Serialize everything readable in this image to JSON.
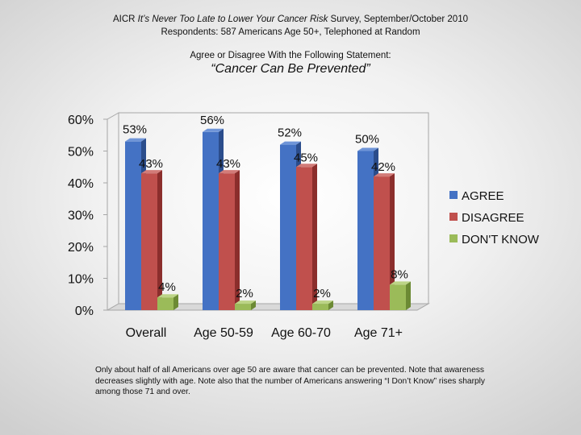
{
  "header": {
    "prefix": "AICR ",
    "survey_name": "It’s Never Too Late to Lower Your Cancer Risk",
    "suffix": " Survey, September/October 2010",
    "respondents": "Respondents: 587 Americans Age 50+, Telephoned at Random"
  },
  "statement_intro": "Agree or Disagree With the Following Statement:",
  "colors": {
    "agree": "#4472C4",
    "disagree": "#C0504D",
    "dont_know": "#9BBB59"
  },
  "chart_data": {
    "type": "bar",
    "title": "“Cancer Can Be Prevented”",
    "categories": [
      "Overall",
      "Age 50-59",
      "Age 60-70",
      "Age 71+"
    ],
    "series": [
      {
        "name": "AGREE",
        "values": [
          53,
          56,
          52,
          50
        ],
        "labels": [
          "53%",
          "56%",
          "52%",
          "50%"
        ]
      },
      {
        "name": "DISAGREE",
        "values": [
          43,
          43,
          45,
          42
        ],
        "labels": [
          "43%",
          "43%",
          "45%",
          "42%"
        ]
      },
      {
        "name": "DON'T KNOW",
        "values": [
          4,
          2,
          2,
          8
        ],
        "labels": [
          "4%",
          "2%",
          "2%",
          "8%"
        ]
      }
    ],
    "yticks": [
      "0%",
      "10%",
      "20%",
      "30%",
      "40%",
      "50%",
      "60%"
    ],
    "ylim": [
      0,
      60
    ],
    "grid": false,
    "legend_position": "right"
  },
  "footnote": "Only about half of all Americans over age 50 are aware that cancer can be prevented.  Note that awareness decreases slightly with age.  Note also that the number of Americans answering “I Don’t Know” rises sharply among those 71 and over."
}
